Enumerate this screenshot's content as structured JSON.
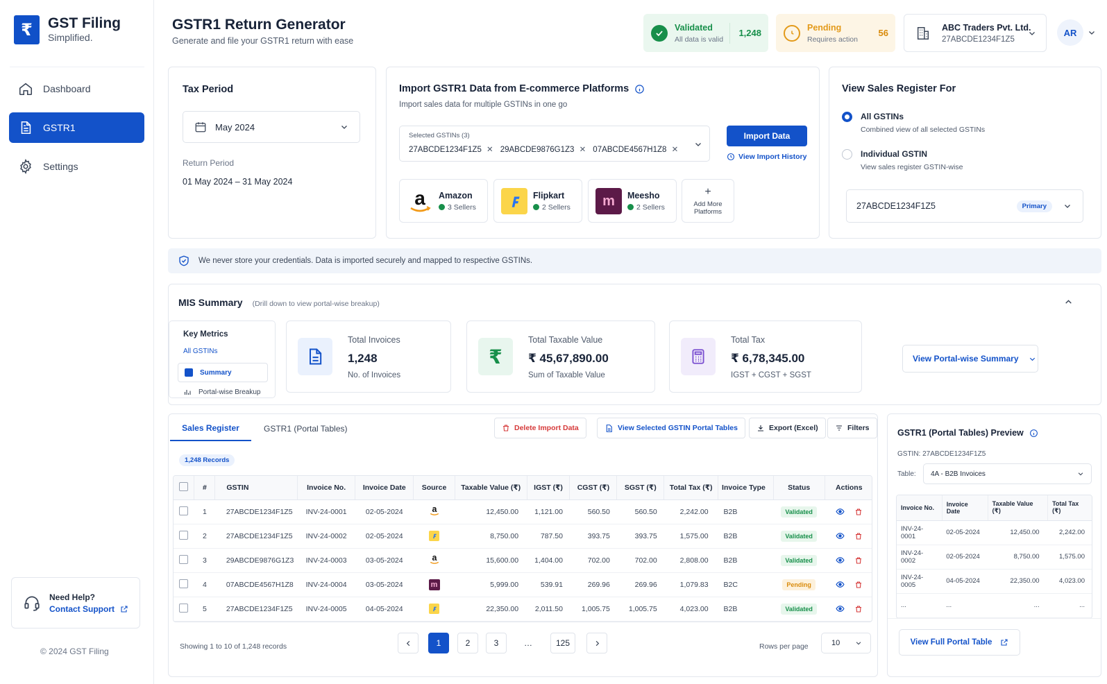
{
  "brand": {
    "title": "GST Filing",
    "subtitle": "Simplified.",
    "logo_glyph": "₹"
  },
  "sidebar": {
    "items": [
      {
        "label": "Dashboard",
        "icon": "home-icon",
        "active": false
      },
      {
        "label": "GSTR1",
        "icon": "document-icon",
        "active": true
      },
      {
        "label": "Settings",
        "icon": "gear-icon",
        "active": false
      }
    ],
    "help_title": "Need Help?",
    "help_link": "Contact Support",
    "copyright": "© 2024 GST Filing"
  },
  "header": {
    "title": "GSTR1 Return Generator",
    "subtitle": "Generate and file your GSTR1 return with ease",
    "validated": {
      "label": "Validated",
      "sub": "All data is valid",
      "count": "1,248",
      "color": "#178f4a"
    },
    "pending": {
      "label": "Pending",
      "sub": "Requires action",
      "count": "56",
      "color": "#d98b0c"
    },
    "company": {
      "name": "ABC Traders Pvt. Ltd.",
      "gstin": "27ABCDE1234F1Z5"
    },
    "avatar": "AR"
  },
  "tax_period": {
    "title": "Tax Period",
    "month": "May 2024",
    "return_label": "Return Period",
    "return_range": "01 May 2024 – 31 May 2024"
  },
  "import": {
    "title": "Import GSTR1 Data from E-commerce Platforms",
    "subtitle": "Import sales data for multiple GSTINs in one go",
    "selected_label": "Selected GSTINs (3)",
    "gstins": [
      "27ABCDE1234F1Z5",
      "29ABCDE9876G1Z3",
      "07ABCDE4567H1Z8"
    ],
    "import_button": "Import Data",
    "history_link": "View Import History",
    "platforms": [
      {
        "name": "Amazon",
        "sellers": "3 Sellers"
      },
      {
        "name": "Flipkart",
        "sellers": "2 Sellers"
      },
      {
        "name": "Meesho",
        "sellers": "2 Sellers"
      }
    ],
    "add_more_1": "Add More",
    "add_more_2": "Platforms"
  },
  "sales_register_for": {
    "title": "View Sales Register For",
    "options": [
      {
        "label": "All GSTINs",
        "sub": "Combined view of all selected GSTINs",
        "selected": true
      },
      {
        "label": "Individual GSTIN",
        "sub": "View sales register GSTIN-wise",
        "selected": false
      }
    ],
    "gstin": "27ABCDE1234F1Z5",
    "badge": "Primary"
  },
  "security_note": "We never store your credentials. Data is imported securely and mapped to respective GSTINs.",
  "mis": {
    "title": "MIS Summary",
    "subtitle": "(Drill down to view portal-wise breakup)",
    "key_metrics": "Key Metrics",
    "all_gstins": "All GSTINs",
    "nav": [
      "Summary",
      "Portal-wise Breakup"
    ],
    "metrics": [
      {
        "label": "Total Invoices",
        "value": "1,248",
        "sub": "No. of Invoices"
      },
      {
        "label": "Total Taxable Value",
        "value": "₹ 45,67,890.00",
        "sub": "Sum of Taxable Value"
      },
      {
        "label": "Total Tax",
        "value": "₹ 6,78,345.00",
        "sub": "IGST + CGST + SGST"
      }
    ],
    "portal_button": "View Portal-wise Summary"
  },
  "register": {
    "tabs": [
      "Sales Register",
      "GSTR1 (Portal Tables)"
    ],
    "delete_btn": "Delete Import Data",
    "view_tables_btn": "View Selected GSTIN Portal Tables",
    "export_btn": "Export (Excel)",
    "filters_btn": "Filters",
    "records_badge": "1,248 Records",
    "columns": [
      "#",
      "GSTIN",
      "Invoice No.",
      "Invoice Date",
      "Source",
      "Taxable Value (₹)",
      "IGST (₹)",
      "CGST (₹)",
      "SGST (₹)",
      "Total Tax (₹)",
      "Invoice Type",
      "Status",
      "Actions"
    ],
    "rows": [
      {
        "n": "1",
        "gstin": "27ABCDE1234F1Z5",
        "inv": "INV-24-0001",
        "date": "02-05-2024",
        "source": "amazon",
        "taxable": "12,450.00",
        "igst": "1,121.00",
        "cgst": "560.50",
        "sgst": "560.50",
        "total": "2,242.00",
        "type": "B2B",
        "status": "Validated"
      },
      {
        "n": "2",
        "gstin": "27ABCDE1234F1Z5",
        "inv": "INV-24-0002",
        "date": "02-05-2024",
        "source": "flipkart",
        "taxable": "8,750.00",
        "igst": "787.50",
        "cgst": "393.75",
        "sgst": "393.75",
        "total": "1,575.00",
        "type": "B2B",
        "status": "Validated"
      },
      {
        "n": "3",
        "gstin": "29ABCDE9876G1Z3",
        "inv": "INV-24-0003",
        "date": "03-05-2024",
        "source": "amazon",
        "taxable": "15,600.00",
        "igst": "1,404.00",
        "cgst": "702.00",
        "sgst": "702.00",
        "total": "2,808.00",
        "type": "B2B",
        "status": "Validated"
      },
      {
        "n": "4",
        "gstin": "07ABCDE4567H1Z8",
        "inv": "INV-24-0004",
        "date": "03-05-2024",
        "source": "meesho",
        "taxable": "5,999.00",
        "igst": "539.91",
        "cgst": "269.96",
        "sgst": "269.96",
        "total": "1,079.83",
        "type": "B2C",
        "status": "Pending"
      },
      {
        "n": "5",
        "gstin": "27ABCDE1234F1Z5",
        "inv": "INV-24-0005",
        "date": "04-05-2024",
        "source": "flipkart",
        "taxable": "22,350.00",
        "igst": "2,011.50",
        "cgst": "1,005.75",
        "sgst": "1,005.75",
        "total": "4,023.00",
        "type": "B2B",
        "status": "Validated"
      }
    ],
    "showing": "Showing 1 to 10 of 1,248 records",
    "pages": [
      "1",
      "2",
      "3",
      "…",
      "125"
    ],
    "rows_per_page_label": "Rows per page",
    "rows_per_page": "10"
  },
  "preview": {
    "title": "GSTR1 (Portal Tables) Preview",
    "gstin_label": "GSTIN: 27ABCDE1234F1Z5",
    "table_label": "Table:",
    "table_value": "4A - B2B Invoices",
    "columns": [
      "Invoice No.",
      "Invoice Date",
      "Taxable Value (₹)",
      "Total Tax (₹)"
    ],
    "rows": [
      [
        "INV-24-0001",
        "02-05-2024",
        "12,450.00",
        "2,242.00"
      ],
      [
        "INV-24-0002",
        "02-05-2024",
        "8,750.00",
        "1,575.00"
      ],
      [
        "INV-24-0005",
        "04-05-2024",
        "22,350.00",
        "4,023.00"
      ],
      [
        "...",
        "...",
        "...",
        "..."
      ]
    ],
    "full_button": "View Full Portal Table"
  }
}
